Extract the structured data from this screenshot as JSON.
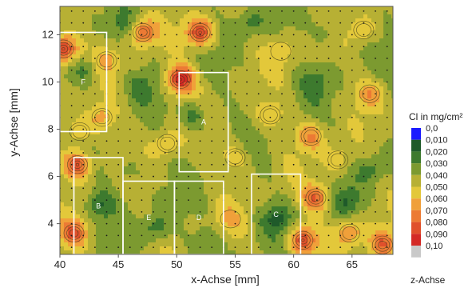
{
  "chart_data": {
    "type": "heatmap",
    "title": "",
    "xlabel": "x-Achse [mm]",
    "ylabel": "y-Achse [mm]",
    "colorbar_title": "Cl in mg/cm²",
    "colorbar_axis_label": "z-Achse",
    "xlim": [
      40,
      68.5
    ],
    "ylim": [
      2.7,
      13.2
    ],
    "x_ticks": [
      "40",
      "45",
      "50",
      "55",
      "60",
      "65"
    ],
    "y_ticks": [
      "4",
      "6",
      "8",
      "10",
      "12"
    ],
    "levels": [
      {
        "label": "0,0",
        "color": "#1a1aff"
      },
      {
        "label": "0,010",
        "color": "#1f5a2a"
      },
      {
        "label": "0,020",
        "color": "#3d7a2e"
      },
      {
        "label": "0,030",
        "color": "#7c9a30"
      },
      {
        "label": "0,040",
        "color": "#b7b034"
      },
      {
        "label": "0,050",
        "color": "#e3c83a"
      },
      {
        "label": "0,060",
        "color": "#f0a03a"
      },
      {
        "label": "0,070",
        "color": "#ec7a34"
      },
      {
        "label": "0,080",
        "color": "#e0502c"
      },
      {
        "label": "0,090",
        "color": "#d42a26"
      },
      {
        "label": "0,10",
        "color": "#c9c9c9"
      }
    ],
    "regions": [
      {
        "label": "F",
        "x": [
          40,
          44
        ],
        "y": [
          7.9,
          12.1
        ]
      },
      {
        "label": "B",
        "x": [
          41.2,
          45.4
        ],
        "y": [
          2.7,
          6.8
        ]
      },
      {
        "label": "E",
        "x": [
          45.4,
          49.8
        ],
        "y": [
          2.7,
          5.8
        ]
      },
      {
        "label": "A",
        "x": [
          50.2,
          54.4
        ],
        "y": [
          6.2,
          10.4
        ]
      },
      {
        "label": "D",
        "x": [
          49.8,
          54
        ],
        "y": [
          2.7,
          5.8
        ]
      },
      {
        "label": "C",
        "x": [
          56.4,
          60.6
        ],
        "y": [
          2.7,
          6.1
        ]
      }
    ],
    "hotspots": [
      {
        "x": 50.3,
        "y": 10.1,
        "value": 0.09
      },
      {
        "x": 40.3,
        "y": 11.4,
        "value": 0.09
      },
      {
        "x": 41.5,
        "y": 6.5,
        "value": 0.08
      },
      {
        "x": 52.0,
        "y": 12.1,
        "value": 0.08
      },
      {
        "x": 47.1,
        "y": 12.1,
        "value": 0.07
      },
      {
        "x": 61.9,
        "y": 5.1,
        "value": 0.07
      },
      {
        "x": 60.8,
        "y": 3.3,
        "value": 0.08
      },
      {
        "x": 41.2,
        "y": 3.6,
        "value": 0.07
      },
      {
        "x": 61.5,
        "y": 7.7,
        "value": 0.06
      },
      {
        "x": 64.8,
        "y": 3.6,
        "value": 0.06
      },
      {
        "x": 67.6,
        "y": 3.1,
        "value": 0.07
      },
      {
        "x": 66.5,
        "y": 9.5,
        "value": 0.055
      },
      {
        "x": 49.2,
        "y": 7.4,
        "value": 0.05
      },
      {
        "x": 55.0,
        "y": 6.8,
        "value": 0.05
      },
      {
        "x": 58.0,
        "y": 8.6,
        "value": 0.05
      },
      {
        "x": 44.0,
        "y": 10.9,
        "value": 0.05
      },
      {
        "x": 66.0,
        "y": 12.2,
        "value": 0.05
      },
      {
        "x": 63.8,
        "y": 6.7,
        "value": 0.05
      },
      {
        "x": 58.9,
        "y": 11.3,
        "value": 0.048
      },
      {
        "x": 54.6,
        "y": 4.2,
        "value": 0.045
      },
      {
        "x": 41.7,
        "y": 7.9,
        "value": 0.055
      },
      {
        "x": 43.6,
        "y": 8.5,
        "value": 0.055
      }
    ],
    "lowspots": [
      {
        "x": 43.5,
        "y": 4.8,
        "value": 0.01
      },
      {
        "x": 48.2,
        "y": 3.8,
        "value": 0.012
      },
      {
        "x": 51.5,
        "y": 8.5,
        "value": 0.012
      },
      {
        "x": 58.5,
        "y": 4.2,
        "value": 0.01
      },
      {
        "x": 64.5,
        "y": 4.9,
        "value": 0.015
      },
      {
        "x": 66.7,
        "y": 6.3,
        "value": 0.015
      },
      {
        "x": 42.3,
        "y": 10.5,
        "value": 0.015
      },
      {
        "x": 56.3,
        "y": 12.5,
        "value": 0.015
      },
      {
        "x": 61.9,
        "y": 10.0,
        "value": 0.018
      },
      {
        "x": 46.9,
        "y": 9.8,
        "value": 0.02
      },
      {
        "x": 45.5,
        "y": 12.3,
        "value": 0.018
      },
      {
        "x": 52.6,
        "y": 3.2,
        "value": 0.02
      },
      {
        "x": 63.0,
        "y": 12.2,
        "value": 0.02
      },
      {
        "x": 45.9,
        "y": 6.2,
        "value": 0.02
      }
    ],
    "measurement_grid": {
      "x_start": 40,
      "x_step": 1,
      "y_start": 3,
      "y_step": 0.5
    }
  }
}
